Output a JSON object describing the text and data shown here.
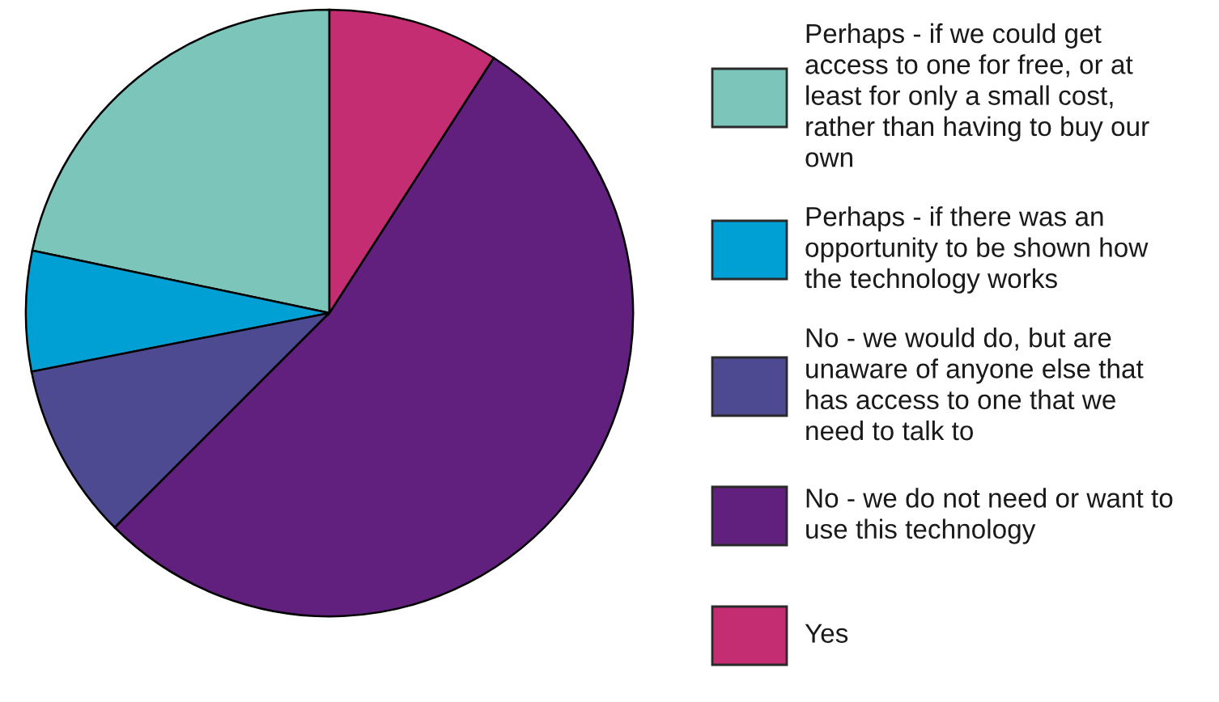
{
  "chart_data": {
    "type": "pie",
    "categories": [
      "Perhaps - if we could get access to one for free, or at least for only a small cost, rather than having to buy our own",
      "Perhaps - if there was an opportunity to be shown how the technology works",
      "No - we would do, but are unaware of anyone else that has access to one that we need to talk to",
      "No - we do not need or want to use this technology",
      "Yes"
    ],
    "values": [
      21.7,
      6.4,
      9.4,
      53.4,
      9.1
    ],
    "colors": [
      "#7cc5ba",
      "#009fd4",
      "#4d4a92",
      "#62207e",
      "#c42d72"
    ],
    "legend": "right"
  }
}
